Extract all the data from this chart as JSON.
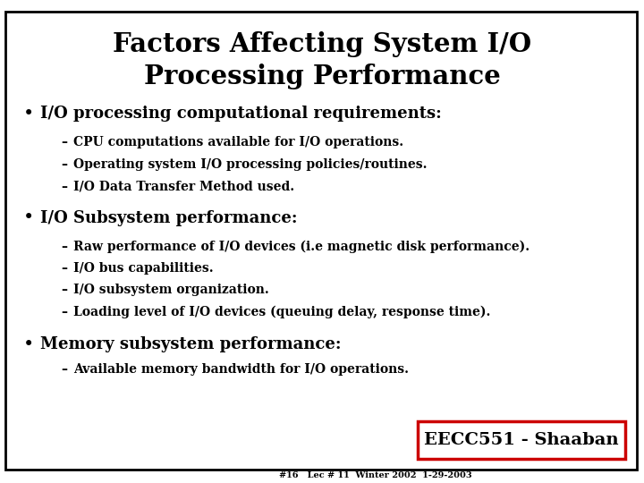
{
  "title_line1": "Factors Affecting System I/O",
  "title_line2": "Processing Performance",
  "background_color": "#ffffff",
  "border_color": "#000000",
  "text_color": "#000000",
  "bullet1": "I/O processing computational requirements:",
  "bullet1_subs": [
    "CPU computations available for I/O operations.",
    "Operating system I/O processing policies/routines.",
    "I/O Data Transfer Method used."
  ],
  "bullet2": "I/O Subsystem performance:",
  "bullet2_subs": [
    "Raw performance of I/O devices (i.e magnetic disk performance).",
    "I/O bus capabilities.",
    "I/O subsystem organization.",
    "Loading level of I/O devices (queuing delay, response time)."
  ],
  "bullet3": "Memory subsystem performance:",
  "bullet3_subs": [
    "Available memory bandwidth for I/O operations."
  ],
  "footer_box_text": "EECC551 - Shaaban",
  "footer_text": "#16   Lec # 11  Winter 2002  1-29-2003",
  "footer_box_border": "#cc0000",
  "footer_box_bg": "#ffffff"
}
